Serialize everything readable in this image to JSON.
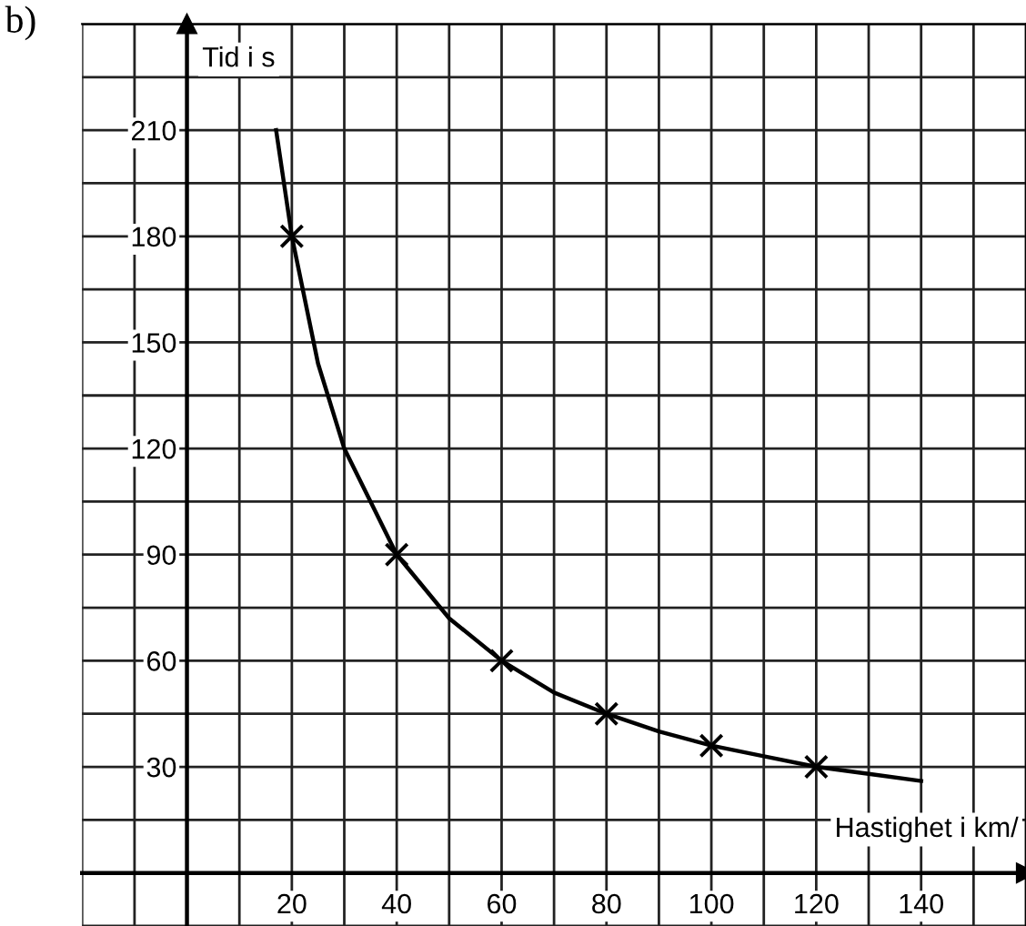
{
  "chart_data": {
    "type": "line",
    "xlabel": "Hastighet i km/",
    "ylabel": "Tid i s",
    "annotations": [
      "b)"
    ],
    "series": [
      {
        "color": "#000000",
        "marker": "none",
        "x": [
          17,
          20,
          25,
          30,
          40,
          50,
          60,
          70,
          80,
          90,
          100,
          110,
          120,
          130,
          140
        ],
        "values": [
          210,
          180,
          144,
          120,
          90,
          72,
          60,
          51,
          45,
          40,
          36,
          33,
          30,
          28,
          26
        ]
      },
      {
        "type": "scatter",
        "color": "#000000",
        "marker": "cross",
        "x": [
          20,
          40,
          60,
          80,
          100,
          120
        ],
        "values": [
          180,
          90,
          60,
          45,
          36,
          30
        ]
      }
    ],
    "xlim": [
      -20,
      160
    ],
    "ylim": [
      -15,
      240
    ],
    "xticks": [
      {
        "value": -20,
        "label": null
      },
      {
        "value": -10,
        "label": null
      },
      {
        "value": 0,
        "label": null
      },
      {
        "value": 10,
        "label": null
      },
      20,
      {
        "value": 30,
        "label": null
      },
      40,
      {
        "value": 50,
        "label": null
      },
      60,
      {
        "value": 70,
        "label": null
      },
      80,
      {
        "value": 90,
        "label": null
      },
      100,
      {
        "value": 110,
        "label": null
      },
      120,
      {
        "value": 130,
        "label": null
      },
      140,
      {
        "value": 150,
        "label": null
      },
      {
        "value": 160,
        "label": null
      }
    ],
    "yticks": [
      {
        "value": -15,
        "label": null
      },
      {
        "value": 0,
        "label": null
      },
      {
        "value": 15,
        "label": null
      },
      30,
      {
        "value": 45,
        "label": null
      },
      60,
      {
        "value": 75,
        "label": null
      },
      90,
      {
        "value": 105,
        "label": null
      },
      120,
      {
        "value": 135,
        "label": null
      },
      150,
      {
        "value": 165,
        "label": null
      },
      180,
      {
        "value": 195,
        "label": null
      },
      210,
      {
        "value": 225,
        "label": null
      },
      {
        "value": 240,
        "label": null
      }
    ],
    "grid": true
  }
}
